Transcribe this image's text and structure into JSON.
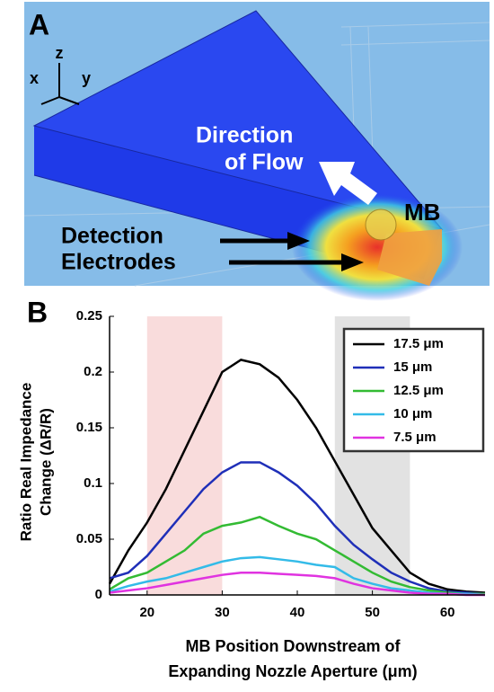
{
  "panel_a": {
    "label": "A",
    "axis_z": "z",
    "axis_x": "x",
    "axis_y": "y",
    "flow_label": [
      "Direction",
      "of Flow"
    ],
    "mb_label": "MB",
    "electrode_label": [
      "Detection",
      "Electrodes"
    ]
  },
  "chart_data": {
    "type": "line",
    "panel_label": "B",
    "xlabel": [
      "MB Position Downstream of",
      "Expanding Nozzle Aperture (μm)"
    ],
    "ylabel": [
      "Ratio Real Impedance",
      "Change (ΔR/R)"
    ],
    "x": [
      15,
      17.5,
      20,
      22.5,
      25,
      27.5,
      30,
      32.5,
      35,
      37.5,
      40,
      42.5,
      45,
      47.5,
      50,
      52.5,
      55,
      57.5,
      60,
      62.5,
      65
    ],
    "series": [
      {
        "name": "17.5 μm",
        "color": "#000000",
        "values": [
          0.01,
          0.04,
          0.065,
          0.095,
          0.13,
          0.165,
          0.2,
          0.211,
          0.207,
          0.195,
          0.175,
          0.15,
          0.12,
          0.09,
          0.06,
          0.04,
          0.02,
          0.01,
          0.005,
          0.003,
          0.002
        ]
      },
      {
        "name": "15 μm",
        "color": "#1f2fb8",
        "values": [
          0.015,
          0.02,
          0.035,
          0.055,
          0.075,
          0.095,
          0.11,
          0.119,
          0.119,
          0.11,
          0.098,
          0.082,
          0.062,
          0.045,
          0.032,
          0.02,
          0.012,
          0.006,
          0.003,
          0.002,
          0.001
        ]
      },
      {
        "name": "12.5 μm",
        "color": "#33bb33",
        "values": [
          0.005,
          0.015,
          0.02,
          0.03,
          0.04,
          0.055,
          0.062,
          0.065,
          0.07,
          0.062,
          0.055,
          0.05,
          0.04,
          0.03,
          0.02,
          0.012,
          0.007,
          0.004,
          0.002,
          0.001,
          0.001
        ]
      },
      {
        "name": "10 μm",
        "color": "#33bbe8",
        "values": [
          0.003,
          0.008,
          0.012,
          0.015,
          0.02,
          0.025,
          0.03,
          0.033,
          0.034,
          0.032,
          0.03,
          0.027,
          0.025,
          0.015,
          0.01,
          0.006,
          0.004,
          0.002,
          0.001,
          0.001,
          0
        ]
      },
      {
        "name": "7.5 μm",
        "color": "#e033e0",
        "values": [
          0.002,
          0.004,
          0.006,
          0.009,
          0.012,
          0.015,
          0.018,
          0.02,
          0.02,
          0.019,
          0.018,
          0.017,
          0.015,
          0.01,
          0.006,
          0.004,
          0.002,
          0.001,
          0.001,
          0,
          0
        ]
      }
    ],
    "shaded_regions": [
      {
        "xlim": [
          20,
          30
        ],
        "color": "#f9dcdc"
      },
      {
        "xlim": [
          45,
          55
        ],
        "color": "#e2e2e2"
      }
    ],
    "xlim": [
      15,
      65
    ],
    "xticks": [
      20,
      30,
      40,
      50,
      60
    ],
    "ylim": [
      0,
      0.25
    ],
    "yticks": [
      0,
      0.05,
      0.1,
      0.15,
      0.2,
      0.25
    ],
    "legend": "upper right"
  }
}
